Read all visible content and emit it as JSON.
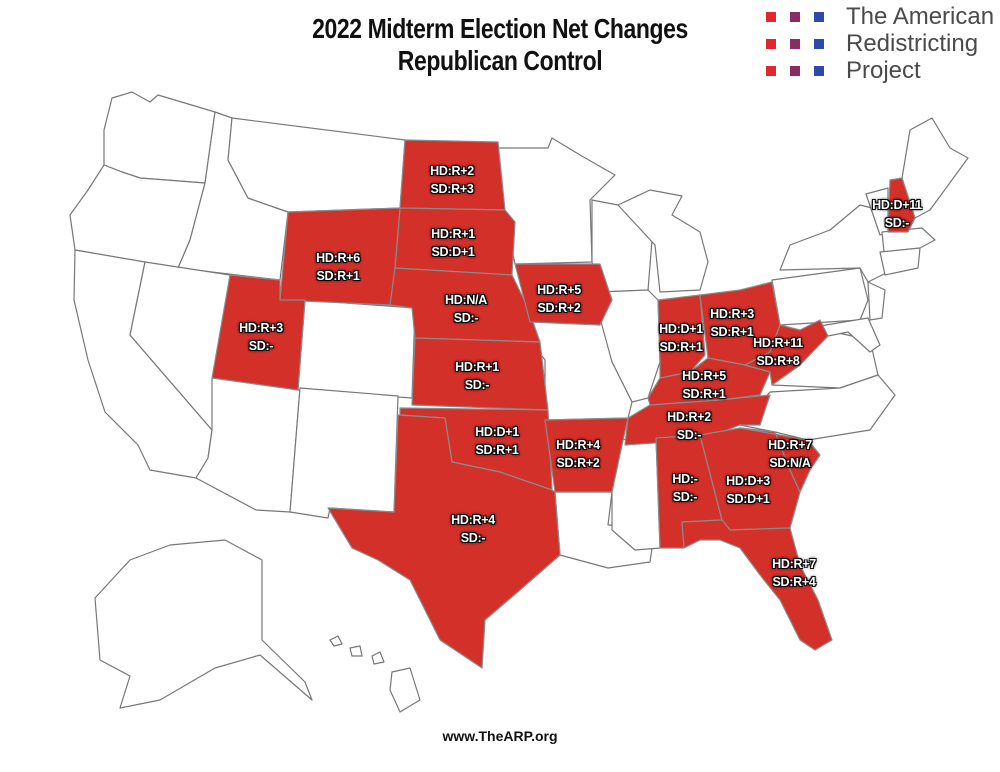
{
  "title": {
    "line1": "2022 Midterm Election Net Changes",
    "line2": "Republican Control"
  },
  "logo": {
    "line1": "The American",
    "line2": "Redistricting",
    "line3": "Project",
    "colors": [
      "#e0272e",
      "#8a2b63",
      "#2e4aa8"
    ]
  },
  "fill_color": "#d4302a",
  "states": [
    {
      "id": "ND",
      "hd": "HD:R+2",
      "sd": "SD:R+3"
    },
    {
      "id": "SD",
      "hd": "HD:R+1",
      "sd": "SD:D+1"
    },
    {
      "id": "WY",
      "hd": "HD:R+6",
      "sd": "SD:R+1"
    },
    {
      "id": "NE",
      "hd": "HD:N/A",
      "sd": "SD:-"
    },
    {
      "id": "IA",
      "hd": "HD:R+5",
      "sd": "SD:R+2"
    },
    {
      "id": "UT",
      "hd": "HD:R+3",
      "sd": "SD:-"
    },
    {
      "id": "KS",
      "hd": "HD:R+1",
      "sd": "SD:-"
    },
    {
      "id": "OK",
      "hd": "HD:D+1",
      "sd": "SD:R+1"
    },
    {
      "id": "AR",
      "hd": "HD:R+4",
      "sd": "SD:R+2"
    },
    {
      "id": "TX",
      "hd": "HD:R+4",
      "sd": "SD:-"
    },
    {
      "id": "IN",
      "hd": "HD:D+1",
      "sd": "SD:R+1"
    },
    {
      "id": "OH",
      "hd": "HD:R+3",
      "sd": "SD:R+1"
    },
    {
      "id": "KY",
      "hd": "HD:R+5",
      "sd": "SD:R+1"
    },
    {
      "id": "WV",
      "hd": "HD:R+11",
      "sd": "SD:R+8"
    },
    {
      "id": "TN",
      "hd": "HD:R+2",
      "sd": "SD:-"
    },
    {
      "id": "AL",
      "hd": "HD:-",
      "sd": "SD:-"
    },
    {
      "id": "GA",
      "hd": "HD:D+3",
      "sd": "SD:D+1"
    },
    {
      "id": "SC",
      "hd": "HD:R+7",
      "sd": "SD:N/A"
    },
    {
      "id": "FL",
      "hd": "HD:R+7",
      "sd": "SD:R+4"
    },
    {
      "id": "NH",
      "hd": "HD:D+11",
      "sd": "SD:-"
    }
  ],
  "footer": "www.TheARP.org"
}
